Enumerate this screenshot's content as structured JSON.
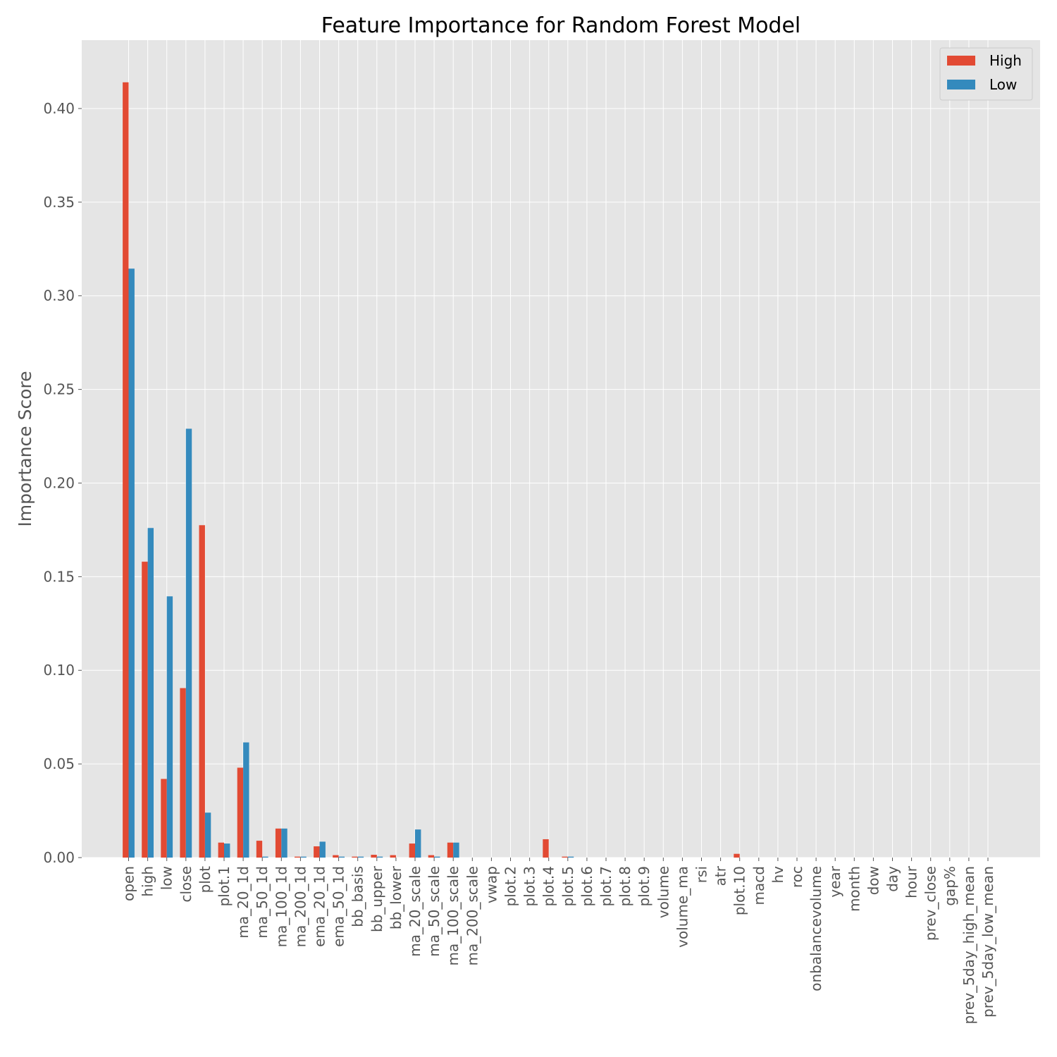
{
  "chart_data": {
    "type": "bar",
    "title": "Feature Importance for Random Forest Model",
    "xlabel": "",
    "ylabel": "Importance Score",
    "ylim": [
      0,
      0.4365
    ],
    "yticks": [
      "0.00",
      "0.05",
      "0.10",
      "0.15",
      "0.20",
      "0.25",
      "0.30",
      "0.35",
      "0.40"
    ],
    "grid": true,
    "legend_position": "top-right",
    "categories": [
      "open",
      "high",
      "low",
      "close",
      "plot",
      "plot.1",
      "ma_20_1d",
      "ma_50_1d",
      "ma_100_1d",
      "ma_200_1d",
      "ema_20_1d",
      "ema_50_1d",
      "bb_basis",
      "bb_upper",
      "bb_lower",
      "ma_20_scale",
      "ma_50_scale",
      "ma_100_scale",
      "ma_200_scale",
      "vwap",
      "plot.2",
      "plot.3",
      "plot.4",
      "plot.5",
      "plot.6",
      "plot.7",
      "plot.8",
      "plot.9",
      "volume",
      "volume_ma",
      "rsi",
      "atr",
      "plot.10",
      "macd",
      "hv",
      "roc",
      "onbalancevolume",
      "year",
      "month",
      "dow",
      "day",
      "hour",
      "prev_close",
      "gap%",
      "prev_5day_high_mean",
      "prev_5day_low_mean"
    ],
    "series": [
      {
        "name": "High",
        "color": "#E24A33",
        "values": [
          0.414,
          0.158,
          0.042,
          0.0905,
          0.1775,
          0.008,
          0.048,
          0.009,
          0.0155,
          0.0005,
          0.006,
          0.0013,
          0.0005,
          0.0015,
          0.0013,
          0.0075,
          0.0013,
          0.008,
          0,
          0,
          0,
          0,
          0.0098,
          0.0005,
          0,
          0,
          0,
          0,
          0,
          0,
          0,
          0,
          0.002,
          0,
          0,
          0,
          0,
          0,
          0,
          0,
          0,
          0,
          0,
          0,
          0,
          0
        ]
      },
      {
        "name": "Low",
        "color": "#348ABD",
        "values": [
          0.3145,
          0.176,
          0.1395,
          0.229,
          0.024,
          0.0075,
          0.0615,
          0.0005,
          0.0155,
          0.0005,
          0.0085,
          0.0005,
          0.0005,
          0.0005,
          0,
          0.015,
          0.0005,
          0.008,
          0,
          0,
          0,
          0,
          0,
          0.0005,
          0,
          0,
          0,
          0,
          0,
          0,
          0,
          0,
          0,
          0,
          0,
          0,
          0,
          0,
          0,
          0,
          0,
          0,
          0,
          0,
          0,
          0
        ]
      }
    ]
  }
}
